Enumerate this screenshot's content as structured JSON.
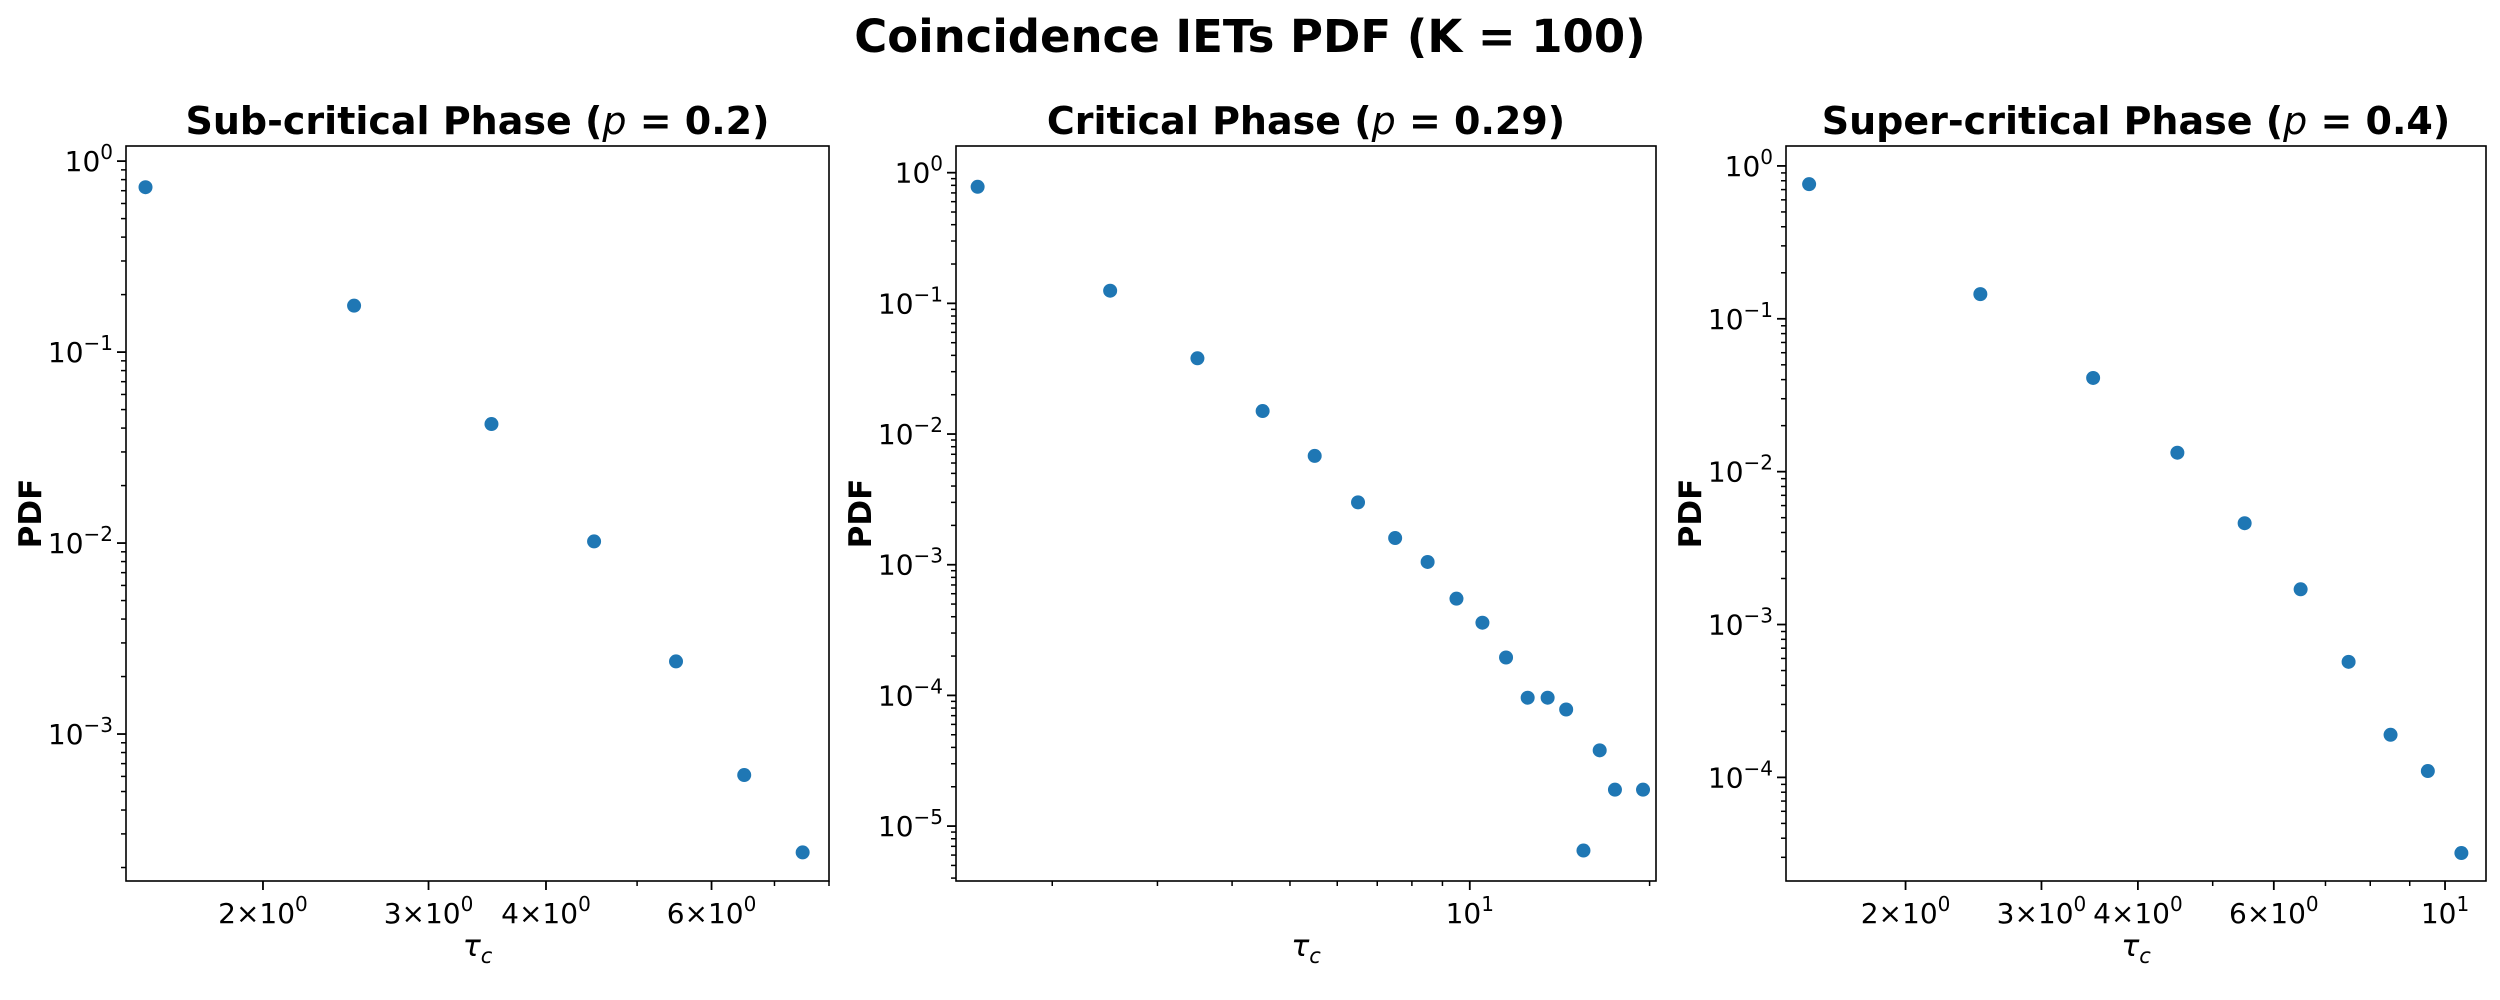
{
  "suptitle": "Coincidence IETs PDF (K = 100)",
  "colors": {
    "marker": "#1f77b4",
    "axes": "#000000",
    "background": "#ffffff"
  },
  "chart_data": [
    {
      "type": "scatter",
      "title_prefix": "Sub-critical Phase (",
      "title_var": "p",
      "title_suffix": " = 0.2)",
      "xlabel": "τc",
      "ylabel": "PDF",
      "xscale": "log",
      "yscale": "log",
      "xlim": [
        1.43,
        8.0
      ],
      "ylim": [
        0.00017,
        1.2
      ],
      "grid": false,
      "x": [
        1.5,
        2.5,
        3.5,
        4.5,
        5.5,
        6.5,
        7.5
      ],
      "y": [
        0.73,
        0.175,
        0.042,
        0.0102,
        0.0024,
        0.00061,
        0.00024
      ],
      "xticks": [
        {
          "value": 2,
          "base": "2×10",
          "exp": "0"
        },
        {
          "value": 3,
          "base": "3×10",
          "exp": "0"
        },
        {
          "value": 4,
          "base": "4×10",
          "exp": "0"
        },
        {
          "value": 6,
          "base": "6×10",
          "exp": "0"
        }
      ],
      "yticks": [
        {
          "value": 1,
          "base": "10",
          "exp": "0"
        },
        {
          "value": 0.1,
          "base": "10",
          "exp": "−1"
        },
        {
          "value": 0.01,
          "base": "10",
          "exp": "−2"
        },
        {
          "value": 0.001,
          "base": "10",
          "exp": "−3"
        }
      ]
    },
    {
      "type": "scatter",
      "title_prefix": "Critical Phase (",
      "title_var": "p",
      "title_suffix": " = 0.29)",
      "xlabel": "τc",
      "ylabel": "PDF",
      "xscale": "log",
      "yscale": "log",
      "xlim": [
        1.38,
        20.5
      ],
      "ylim": [
        3.8e-06,
        1.6
      ],
      "grid": false,
      "x": [
        1.5,
        2.5,
        3.5,
        4.5,
        5.5,
        6.5,
        7.5,
        8.5,
        9.5,
        10.5,
        11.5,
        12.5,
        13.5,
        14.5,
        15.5,
        16.5,
        17.5,
        19.5
      ],
      "y": [
        0.78,
        0.125,
        0.038,
        0.015,
        0.0068,
        0.003,
        0.0016,
        0.00105,
        0.00055,
        0.00036,
        0.000195,
        9.6e-05,
        9.6e-05,
        7.8e-05,
        6.5e-06,
        3.8e-05,
        1.9e-05,
        1.9e-05
      ],
      "xticks": [
        {
          "value": 10,
          "base": "10",
          "exp": "1"
        }
      ],
      "yticks": [
        {
          "value": 1,
          "base": "10",
          "exp": "0"
        },
        {
          "value": 0.1,
          "base": "10",
          "exp": "−1"
        },
        {
          "value": 0.01,
          "base": "10",
          "exp": "−2"
        },
        {
          "value": 0.001,
          "base": "10",
          "exp": "−3"
        },
        {
          "value": 0.0001,
          "base": "10",
          "exp": "−4"
        },
        {
          "value": 1e-05,
          "base": "10",
          "exp": "−5"
        }
      ]
    },
    {
      "type": "scatter",
      "title_prefix": "Super-critical Phase (",
      "title_var": "p",
      "title_suffix": " = 0.4)",
      "xlabel": "τc",
      "ylabel": "PDF",
      "xscale": "log",
      "yscale": "log",
      "xlim": [
        1.4,
        11.3
      ],
      "ylim": [
        2.1e-05,
        1.35
      ],
      "grid": false,
      "x": [
        1.5,
        2.5,
        3.5,
        4.5,
        5.5,
        6.5,
        7.5,
        8.5,
        9.5,
        10.5
      ],
      "y": [
        0.76,
        0.145,
        0.041,
        0.0133,
        0.0046,
        0.0017,
        0.00057,
        0.00019,
        0.00011,
        3.2e-05
      ],
      "xticks": [
        {
          "value": 2,
          "base": "2×10",
          "exp": "0"
        },
        {
          "value": 3,
          "base": "3×10",
          "exp": "0"
        },
        {
          "value": 4,
          "base": "4×10",
          "exp": "0"
        },
        {
          "value": 6,
          "base": "6×10",
          "exp": "0"
        },
        {
          "value": 10,
          "base": "10",
          "exp": "1"
        }
      ],
      "yticks": [
        {
          "value": 1,
          "base": "10",
          "exp": "0"
        },
        {
          "value": 0.1,
          "base": "10",
          "exp": "−1"
        },
        {
          "value": 0.01,
          "base": "10",
          "exp": "−2"
        },
        {
          "value": 0.001,
          "base": "10",
          "exp": "−3"
        },
        {
          "value": 0.0001,
          "base": "10",
          "exp": "−4"
        }
      ]
    }
  ]
}
